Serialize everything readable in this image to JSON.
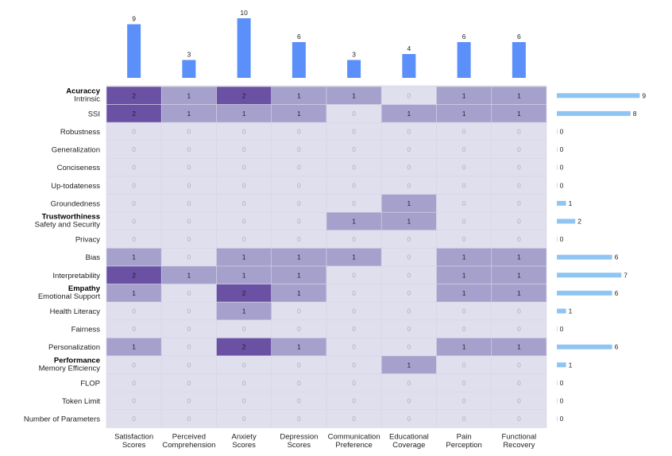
{
  "chart_data": {
    "type": "heatmap",
    "title": "",
    "xlabel": "",
    "ylabel": "",
    "columns": [
      "Satisfaction Scores",
      "Perceived Comprehension",
      "Anxiety Scores",
      "Depression Scores",
      "Communication Preference",
      "Educational Coverage",
      "Pain Perception",
      "Functional Recovery"
    ],
    "column_labels": [
      [
        "Satisfaction",
        "Scores"
      ],
      [
        "Perceived",
        "Comprehension"
      ],
      [
        "Anxiety",
        "Scores"
      ],
      [
        "Depression",
        "Scores"
      ],
      [
        "Communication",
        "Preference"
      ],
      [
        "Educational",
        "Coverage"
      ],
      [
        "Pain",
        "Perception"
      ],
      [
        "Functional",
        "Recovery"
      ]
    ],
    "rows": [
      "Intrinsic",
      "SSI",
      "Robustness",
      "Generalization",
      "Conciseness",
      "Up-todateness",
      "Groundedness",
      "Safety and Security",
      "Privacy",
      "Bias",
      "Interpretability",
      "Emotional Support",
      "Health Literacy",
      "Fairness",
      "Personalization",
      "Memory Efficiency",
      "FLOP",
      "Token Limit",
      "Number of Parameters"
    ],
    "row_groups": [
      {
        "label": "Acuraccy",
        "first_row": "Intrinsic"
      },
      {
        "label": "Trustworthiness",
        "first_row": "Safety and Security"
      },
      {
        "label": "Empathy",
        "first_row": "Emotional Support"
      },
      {
        "label": "Performance",
        "first_row": "Memory Efficiency"
      }
    ],
    "values": [
      [
        2,
        1,
        2,
        1,
        1,
        0,
        1,
        1
      ],
      [
        2,
        1,
        1,
        1,
        0,
        1,
        1,
        1
      ],
      [
        0,
        0,
        0,
        0,
        0,
        0,
        0,
        0
      ],
      [
        0,
        0,
        0,
        0,
        0,
        0,
        0,
        0
      ],
      [
        0,
        0,
        0,
        0,
        0,
        0,
        0,
        0
      ],
      [
        0,
        0,
        0,
        0,
        0,
        0,
        0,
        0
      ],
      [
        0,
        0,
        0,
        0,
        0,
        1,
        0,
        0
      ],
      [
        0,
        0,
        0,
        0,
        1,
        1,
        0,
        0
      ],
      [
        0,
        0,
        0,
        0,
        0,
        0,
        0,
        0
      ],
      [
        1,
        0,
        1,
        1,
        1,
        0,
        1,
        1
      ],
      [
        2,
        1,
        1,
        1,
        0,
        0,
        1,
        1
      ],
      [
        1,
        0,
        2,
        1,
        0,
        0,
        1,
        1
      ],
      [
        0,
        0,
        1,
        0,
        0,
        0,
        0,
        0
      ],
      [
        0,
        0,
        0,
        0,
        0,
        0,
        0,
        0
      ],
      [
        1,
        0,
        2,
        1,
        0,
        0,
        1,
        1
      ],
      [
        0,
        0,
        0,
        0,
        0,
        1,
        0,
        0
      ],
      [
        0,
        0,
        0,
        0,
        0,
        0,
        0,
        0
      ],
      [
        0,
        0,
        0,
        0,
        0,
        0,
        0,
        0
      ],
      [
        0,
        0,
        0,
        0,
        0,
        0,
        0,
        0
      ]
    ],
    "column_totals": {
      "type": "bar",
      "placement": "top",
      "values": [
        9,
        3,
        10,
        6,
        3,
        4,
        6,
        6
      ]
    },
    "row_totals": {
      "type": "bar",
      "placement": "right",
      "values": [
        9,
        8,
        0,
        0,
        0,
        0,
        1,
        2,
        0,
        6,
        7,
        6,
        1,
        0,
        6,
        1,
        0,
        0,
        0
      ]
    },
    "colors": {
      "cell_0": "#e0dfee",
      "cell_1": "#a5a1cc",
      "cell_2": "#6a51a3",
      "cell_text_0": "#b0b0b8",
      "cell_text_nonzero": "#222222",
      "column_bar": "#5b8ff9",
      "row_bar": "#8fc5f2"
    }
  }
}
